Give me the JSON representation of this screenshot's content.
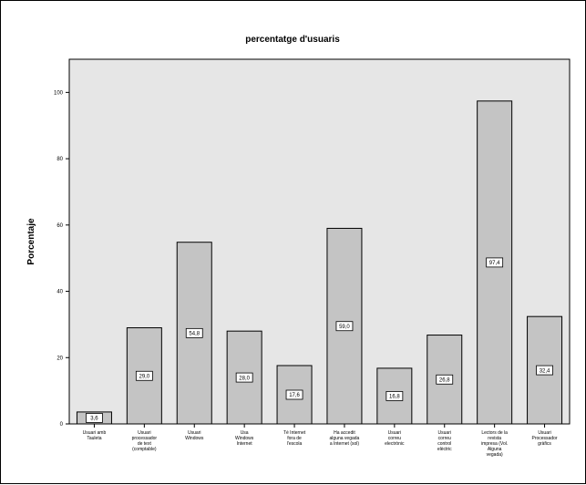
{
  "chart_data": {
    "type": "bar",
    "title": "percentatge d'usuaris",
    "ylabel": "Porcentaje",
    "xlabel": "",
    "ylim": [
      0,
      110
    ],
    "yticks": [
      0,
      20,
      40,
      60,
      80,
      100
    ],
    "ytick_labels": [
      "0",
      "20",
      "40",
      "60",
      "80",
      "100"
    ],
    "grid": false,
    "legend": "none",
    "categories": [
      [
        "Usuari amb",
        "Tauleta"
      ],
      [
        "Usuari",
        "processador",
        "de text",
        "(comptable)"
      ],
      [
        "Usuari",
        "Windows"
      ],
      [
        "Usa",
        "Windows",
        "Internet"
      ],
      [
        "Té Internet",
        "fora de",
        "l'escola"
      ],
      [
        "Ha accedit",
        "alguna vegada",
        "a Internet (sol)"
      ],
      [
        "Usuari",
        "correu",
        "electrònic"
      ],
      [
        "Usuari",
        "correu",
        "control",
        "elèctric"
      ],
      [
        "Lectors de la",
        "revista",
        "impresa (Vol.",
        "Alguna",
        "vegada)"
      ],
      [
        "Usuari",
        "Processador",
        "gràfics"
      ]
    ],
    "values": [
      3.6,
      29.0,
      54.8,
      28.0,
      17.6,
      59.0,
      16.8,
      26.8,
      97.4,
      32.4
    ],
    "data_labels": [
      "3,6",
      "29,0",
      "54,8",
      "28,0",
      "17,6",
      "59,0",
      "16,8",
      "26,8",
      "97,4",
      "32,4"
    ],
    "colors": {
      "plot_bg": "#e6e6e6",
      "bar_fill": "#c4c4c4",
      "bar_stroke": "#000000",
      "label_box": "#ffffff"
    }
  }
}
